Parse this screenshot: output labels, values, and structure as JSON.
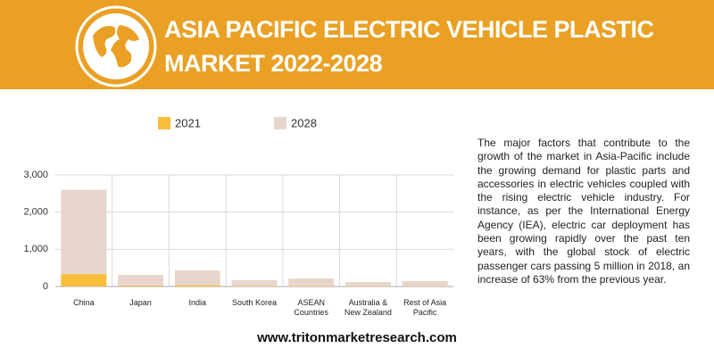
{
  "chart_data": {
    "type": "bar",
    "title": "ASIA PACIFIC ELECTRIC VEHICLE PLASTIC MARKET 2022-2028",
    "categories": [
      "China",
      "Japan",
      "India",
      "South Korea",
      "ASEAN Countries",
      "Australia & New Zealand",
      "Rest of Asia Pacific"
    ],
    "series": [
      {
        "name": "2028",
        "color": "#e8d6cc",
        "values": [
          2600,
          310,
          430,
          170,
          215,
          120,
          145
        ]
      },
      {
        "name": "2021",
        "color": "#f8bd3a",
        "values": [
          330,
          20,
          30,
          10,
          10,
          5,
          5
        ]
      }
    ],
    "legend_order": [
      1,
      0
    ],
    "ylim": [
      0,
      3000
    ],
    "yticks": [
      0,
      {
        "value": 1000,
        "label": "1,000"
      },
      {
        "value": 2000,
        "label": "2,000"
      },
      {
        "value": 3000,
        "label": "3,000"
      }
    ],
    "grid": true,
    "description": "The major factors that contribute to the growth of the market in Asia-Pacific include the growing demand for plastic parts and accessories in electric vehicles coupled with the rising electric vehicle industry. For instance, as per the International Energy Agency (IEA), electric car deployment has been growing rapidly over the past ten years, with the global stock of electric passenger cars passing 5 million in 2018, an increase of 63% from the previous year.",
    "footer": "www.tritonmarketresearch.com"
  }
}
